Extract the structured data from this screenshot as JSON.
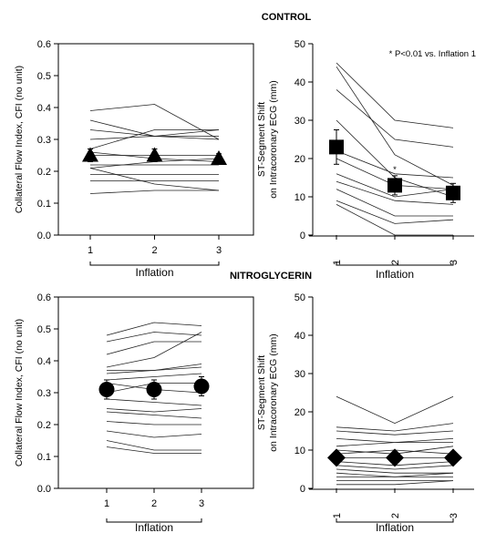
{
  "sections": {
    "control_title": "CONTROL",
    "nitro_title": "NITROGLYCERIN"
  },
  "chart_data": [
    {
      "type": "line",
      "id": "control-cfi",
      "ylabel": "Collateral Flow Index, CFI (no unit)",
      "xlabel": "Inflation",
      "x": [
        1,
        2,
        3
      ],
      "xticks": [
        "1",
        "2",
        "3"
      ],
      "ylim": [
        0,
        0.6
      ],
      "yticks": [
        "0.0",
        "0.1",
        "0.2",
        "0.3",
        "0.4",
        "0.5",
        "0.6"
      ],
      "individual_lines": [
        [
          0.39,
          0.41,
          0.3
        ],
        [
          0.36,
          0.31,
          0.31
        ],
        [
          0.33,
          0.31,
          0.3
        ],
        [
          0.3,
          0.31,
          0.33
        ],
        [
          0.27,
          0.33,
          0.33
        ],
        [
          0.26,
          0.24,
          0.23
        ],
        [
          0.25,
          0.25,
          0.25
        ],
        [
          0.22,
          0.22,
          0.22
        ],
        [
          0.21,
          0.23,
          0.24
        ],
        [
          0.19,
          0.19,
          0.19
        ],
        [
          0.17,
          0.17,
          0.17
        ],
        [
          0.21,
          0.16,
          0.14
        ],
        [
          0.13,
          0.14,
          0.14
        ]
      ],
      "mean": [
        0.25,
        0.25,
        0.24
      ],
      "sem": [
        0.02,
        0.02,
        0.015
      ],
      "marker": "triangle"
    },
    {
      "type": "line",
      "id": "control-st",
      "ylabel_line1": "ST-Segment Shift",
      "ylabel_line2": "on Intracoronary ECG (mm)",
      "xlabel": "Inflation",
      "annotation": "* P<0.01 vs. Inflation 1",
      "sig_marker": "*",
      "x": [
        1,
        2,
        3
      ],
      "xticks": [
        "1",
        "2",
        "3"
      ],
      "ylim": [
        0,
        50
      ],
      "yticks": [
        "0",
        "10",
        "20",
        "30",
        "40",
        "50"
      ],
      "individual_lines": [
        [
          45,
          30,
          28
        ],
        [
          44,
          21,
          13
        ],
        [
          38,
          25,
          23
        ],
        [
          30,
          15,
          10
        ],
        [
          22,
          16,
          15
        ],
        [
          20,
          13,
          12
        ],
        [
          16,
          10,
          12
        ],
        [
          14,
          9,
          8
        ],
        [
          12,
          5,
          5
        ],
        [
          9,
          3,
          4
        ],
        [
          8,
          0,
          0
        ]
      ],
      "mean": [
        23,
        13,
        11
      ],
      "sem": [
        4.5,
        2.5,
        2.5
      ],
      "marker": "square"
    },
    {
      "type": "line",
      "id": "nitro-cfi",
      "ylabel": "Collateral Flow Index, CFI (no unit)",
      "xlabel": "Inflation",
      "x": [
        1,
        2,
        3
      ],
      "xticks": [
        "1",
        "2",
        "3"
      ],
      "ylim": [
        0,
        0.6
      ],
      "yticks": [
        "0.0",
        "0.1",
        "0.2",
        "0.3",
        "0.4",
        "0.5",
        "0.6"
      ],
      "individual_lines": [
        [
          0.48,
          0.52,
          0.51
        ],
        [
          0.46,
          0.49,
          0.48
        ],
        [
          0.42,
          0.46,
          0.46
        ],
        [
          0.38,
          0.41,
          0.49
        ],
        [
          0.37,
          0.37,
          0.39
        ],
        [
          0.36,
          0.37,
          0.38
        ],
        [
          0.34,
          0.35,
          0.36
        ],
        [
          0.33,
          0.31,
          0.3
        ],
        [
          0.3,
          0.33,
          0.33
        ],
        [
          0.28,
          0.27,
          0.26
        ],
        [
          0.25,
          0.24,
          0.25
        ],
        [
          0.24,
          0.23,
          0.22
        ],
        [
          0.21,
          0.2,
          0.2
        ],
        [
          0.18,
          0.16,
          0.17
        ],
        [
          0.15,
          0.12,
          0.12
        ],
        [
          0.13,
          0.11,
          0.11
        ]
      ],
      "mean": [
        0.31,
        0.31,
        0.32
      ],
      "sem": [
        0.03,
        0.03,
        0.03
      ],
      "marker": "circle"
    },
    {
      "type": "line",
      "id": "nitro-st",
      "ylabel_line1": "ST-Segment Shift",
      "ylabel_line2": "on Intracoronary ECG (mm)",
      "xlabel": "Inflation",
      "x": [
        1,
        2,
        3
      ],
      "xticks": [
        "1",
        "2",
        "3"
      ],
      "ylim": [
        0,
        50
      ],
      "yticks": [
        "0",
        "10",
        "20",
        "30",
        "40",
        "50"
      ],
      "individual_lines": [
        [
          24,
          17,
          24
        ],
        [
          16,
          15,
          17
        ],
        [
          15,
          14,
          15
        ],
        [
          13,
          12,
          13
        ],
        [
          11,
          12,
          12
        ],
        [
          10,
          9,
          11
        ],
        [
          9,
          10,
          9
        ],
        [
          8,
          8,
          8
        ],
        [
          7,
          6,
          7
        ],
        [
          6,
          5,
          6
        ],
        [
          5,
          4,
          4
        ],
        [
          4,
          3,
          4
        ],
        [
          3,
          3,
          3
        ],
        [
          2,
          2,
          2
        ],
        [
          1,
          1,
          2
        ]
      ],
      "mean": [
        8,
        8,
        8
      ],
      "sem": [
        1.5,
        1.5,
        1.5
      ],
      "marker": "diamond"
    }
  ]
}
